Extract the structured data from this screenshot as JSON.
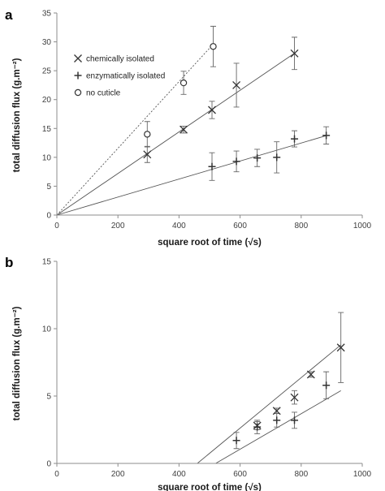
{
  "chart_data": [
    {
      "type": "scatter",
      "panel_label": "a",
      "xlabel": "square root of time (√s)",
      "ylabel": "total diffusion flux  (g.m⁻²)",
      "xlim": [
        0,
        1000
      ],
      "ylim": [
        0,
        35
      ],
      "xticks": [
        0,
        200,
        400,
        600,
        800,
        1000
      ],
      "yticks": [
        0,
        5,
        10,
        15,
        20,
        25,
        30,
        35
      ],
      "grid": false,
      "legend_position": "top-left",
      "series": [
        {
          "name": "chemically isolated",
          "marker": "x",
          "points": [
            {
              "x": 296,
              "y": 10.5,
              "err": 1.4
            },
            {
              "x": 415,
              "y": 14.8,
              "err": 0.6
            },
            {
              "x": 508,
              "y": 18.2,
              "err": 1.5
            },
            {
              "x": 588,
              "y": 22.5,
              "err": 3.8
            },
            {
              "x": 778,
              "y": 28.0,
              "err": 2.8
            }
          ],
          "fit": {
            "x0": 0,
            "y0": 0,
            "x1": 780,
            "y1": 28.1,
            "style": "solid"
          }
        },
        {
          "name": "enzymatically isolated",
          "marker": "+",
          "points": [
            {
              "x": 508,
              "y": 8.4,
              "err": 2.4
            },
            {
              "x": 588,
              "y": 9.3,
              "err": 1.8
            },
            {
              "x": 656,
              "y": 9.9,
              "err": 1.5
            },
            {
              "x": 720,
              "y": 10.0,
              "err": 2.7
            },
            {
              "x": 778,
              "y": 13.2,
              "err": 1.4
            },
            {
              "x": 882,
              "y": 13.8,
              "err": 1.5
            }
          ],
          "fit": {
            "x0": 0,
            "y0": 0,
            "x1": 885,
            "y1": 13.8,
            "style": "solid"
          }
        },
        {
          "name": "no cuticle",
          "marker": "o",
          "points": [
            {
              "x": 296,
              "y": 14.0,
              "err": 2.2
            },
            {
              "x": 415,
              "y": 22.9,
              "err": 2.0
            },
            {
              "x": 512,
              "y": 29.2,
              "err": 3.5
            }
          ],
          "fit": {
            "x0": 0,
            "y0": 0,
            "x1": 512,
            "y1": 29.6,
            "style": "dotted"
          }
        }
      ]
    },
    {
      "type": "scatter",
      "panel_label": "b",
      "xlabel": "square root of time (√s)",
      "ylabel": "total diffusion flux  (g.m⁻²)",
      "xlim": [
        0,
        1000
      ],
      "ylim": [
        0,
        15
      ],
      "xticks": [
        0,
        200,
        400,
        600,
        800,
        1000
      ],
      "yticks": [
        0,
        5,
        10,
        15
      ],
      "grid": false,
      "series": [
        {
          "name": "",
          "marker": "x",
          "points": [
            {
              "x": 656,
              "y": 2.8,
              "err": 0.3
            },
            {
              "x": 720,
              "y": 3.9,
              "err": 0.2
            },
            {
              "x": 778,
              "y": 4.9,
              "err": 0.5
            },
            {
              "x": 832,
              "y": 6.6,
              "err": 0.2
            },
            {
              "x": 930,
              "y": 8.6,
              "err": 2.6
            }
          ],
          "fit": {
            "x0": 460,
            "y0": 0,
            "x1": 930,
            "y1": 8.8,
            "style": "solid"
          }
        },
        {
          "name": "",
          "marker": "+",
          "points": [
            {
              "x": 588,
              "y": 1.7,
              "err": 0.6
            },
            {
              "x": 656,
              "y": 2.7,
              "err": 0.5
            },
            {
              "x": 720,
              "y": 3.2,
              "err": 0.5
            },
            {
              "x": 778,
              "y": 3.2,
              "err": 0.6
            },
            {
              "x": 882,
              "y": 5.8,
              "err": 1.0
            }
          ],
          "fit": {
            "x0": 520,
            "y0": 0,
            "x1": 930,
            "y1": 5.4,
            "style": "solid"
          }
        }
      ]
    }
  ]
}
